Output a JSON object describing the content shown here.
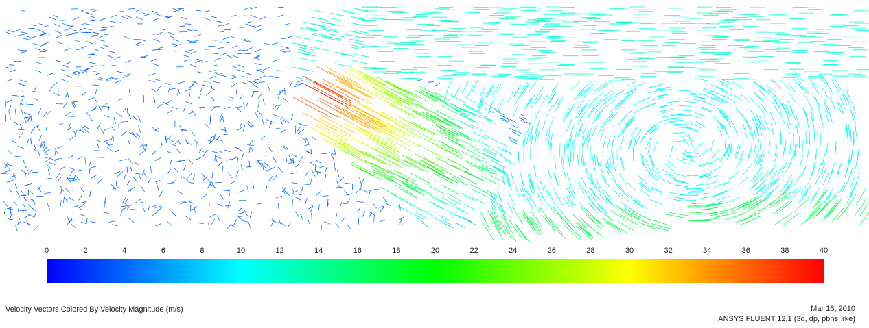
{
  "chart_data": {
    "type": "vector-field",
    "title": "Velocity Vectors Colored By Velocity Magnitude (m/s)",
    "date": "Mar 16, 2010",
    "software": "ANSYS FLUENT 12.1 (3d, dp, pbns, rke)",
    "clim": [
      0,
      40
    ],
    "cticks": [
      0,
      2,
      4,
      6,
      8,
      10,
      12,
      14,
      16,
      18,
      20,
      22,
      24,
      26,
      28,
      30,
      32,
      34,
      36,
      38,
      40
    ],
    "colormap": [
      "#0000ff",
      "#00ffff",
      "#00ff00",
      "#ffff00",
      "#ff0000"
    ]
  }
}
